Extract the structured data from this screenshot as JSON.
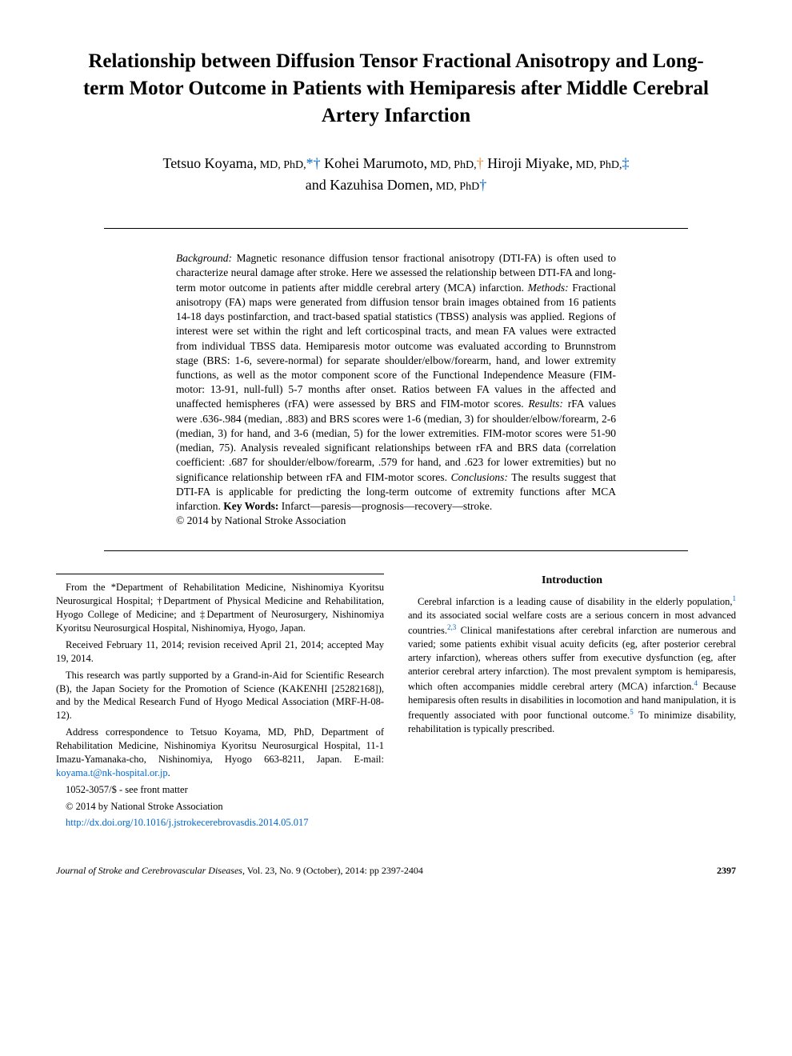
{
  "title": "Relationship between Diffusion Tensor Fractional Anisotropy and Long-term Motor Outcome in Patients with Hemiparesis after Middle Cerebral Artery Infarction",
  "authors": [
    {
      "name": "Tetsuo Koyama,",
      "deg": " MD, PhD,",
      "mark": "*†",
      "mark_color": "blue"
    },
    {
      "name": " Kohei Marumoto,",
      "deg": " MD, PhD,",
      "mark": "†",
      "mark_color": "orange"
    },
    {
      "name": " Hiroji Miyake,",
      "deg": " MD, PhD,",
      "mark": "‡",
      "mark_color": "blue"
    },
    {
      "name": "and Kazuhisa Domen,",
      "deg": " MD, PhD",
      "mark": "†",
      "mark_color": "blue"
    }
  ],
  "abstract": {
    "bg_label": "Background:",
    "bg": " Magnetic resonance diffusion tensor fractional anisotropy (DTI-FA) is often used to characterize neural damage after stroke. Here we assessed the relationship between DTI-FA and long-term motor outcome in patients after middle cerebral artery (MCA) infarction. ",
    "mt_label": "Methods:",
    "mt": " Fractional anisotropy (FA) maps were generated from diffusion tensor brain images obtained from 16 patients 14-18 days postinfarction, and tract-based spatial statistics (TBSS) analysis was applied. Regions of interest were set within the right and left corticospinal tracts, and mean FA values were extracted from individual TBSS data. Hemiparesis motor outcome was evaluated according to Brunnstrom stage (BRS: 1-6, severe-normal) for separate shoulder/elbow/forearm, hand, and lower extremity functions, as well as the motor component score of the Functional Independence Measure (FIM-motor: 13-91, null-full) 5-7 months after onset. Ratios between FA values in the affected and unaffected hemispheres (rFA) were assessed by BRS and FIM-motor scores. ",
    "rs_label": "Results:",
    "rs": " rFA values were .636-.984 (median, .883) and BRS scores were 1-6 (median, 3) for shoulder/elbow/forearm, 2-6 (median, 3) for hand, and 3-6 (median, 5) for the lower extremities. FIM-motor scores were 51-90 (median, 75). Analysis revealed significant relationships between rFA and BRS data (correlation coefficient: .687 for shoulder/elbow/forearm, .579 for hand, and .623 for lower extremities) but no significance relationship between rFA and FIM-motor scores. ",
    "cc_label": "Conclusions:",
    "cc": " The results suggest that DTI-FA is applicable for predicting the long-term outcome of extremity functions after MCA infarction. ",
    "kw_label": "Key Words:",
    "kw": " Infarct—paresis—prognosis—recovery—stroke.",
    "copyright": "© 2014 by National Stroke Association"
  },
  "left_col": {
    "p1": "From the *Department of Rehabilitation Medicine, Nishinomiya Kyoritsu Neurosurgical Hospital; †Department of Physical Medicine and Rehabilitation, Hyogo College of Medicine; and ‡Department of Neurosurgery, Nishinomiya Kyoritsu Neurosurgical Hospital, Nishinomiya, Hyogo, Japan.",
    "p2": "Received February 11, 2014; revision received April 21, 2014; accepted May 19, 2014.",
    "p3": "This research was partly supported by a Grand-in-Aid for Scientific Research (B), the Japan Society for the Promotion of Science (KAKENHI [25282168]), and by the Medical Research Fund of Hyogo Medical Association (MRF-H-08-12).",
    "p4a": "Address correspondence to Tetsuo Koyama, MD, PhD, Department of Rehabilitation Medicine, Nishinomiya Kyoritsu Neurosurgical Hospital, 11-1 Imazu-Yamanaka-cho, Nishinomiya, Hyogo 663-8211, Japan. E-mail: ",
    "p4link": "koyama.t@nk-hospital.or.jp",
    "p4b": ".",
    "p5": "1052-3057/$ - see front matter",
    "p6": "© 2014 by National Stroke Association",
    "p7": "http://dx.doi.org/10.1016/j.jstrokecerebrovasdis.2014.05.017"
  },
  "intro": {
    "heading": "Introduction",
    "p1a": "Cerebral infarction is a leading cause of disability in the elderly population,",
    "r1": "1",
    "p1b": " and its associated social welfare costs are a serious concern in most advanced countries.",
    "r2": "2,3",
    "p1c": " Clinical manifestations after cerebral infarction are numerous and varied; some patients exhibit visual acuity deficits (eg, after posterior cerebral artery infarction), whereas others suffer from executive dysfunction (eg, after anterior cerebral artery infarction). The most prevalent symptom is hemiparesis, which often accompanies middle cerebral artery (MCA) infarction.",
    "r4": "4",
    "p1d": " Because hemiparesis often results in disabilities in locomotion and hand manipulation, it is frequently associated with poor functional outcome.",
    "r5": "5",
    "p1e": " To minimize disability, rehabilitation is typically prescribed."
  },
  "footer": {
    "journal": "Journal of Stroke and Cerebrovascular Diseases,",
    "issue": " Vol. 23, No. 9 (October), 2014: pp 2397-2404",
    "page": "2397"
  },
  "colors": {
    "link": "#0066cc",
    "orange": "#ee8833"
  }
}
